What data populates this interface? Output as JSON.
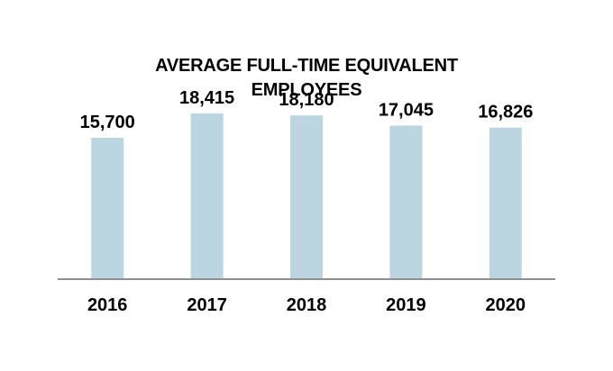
{
  "chart_data": {
    "type": "bar",
    "title_lines": [
      "AVERAGE FULL-TIME EQUIVALENT",
      "EMPLOYEES"
    ],
    "categories": [
      "2016",
      "2017",
      "2018",
      "2019",
      "2020"
    ],
    "values": [
      15700,
      18415,
      18180,
      17045,
      16826
    ],
    "value_labels": [
      "15,700",
      "18,415",
      "18,180",
      "17,045",
      "16,826"
    ],
    "xlabel": "",
    "ylabel": "",
    "ylim": [
      0,
      21000
    ],
    "grid": false,
    "legend": "none",
    "colors": {
      "bar": "#bcd6e1",
      "axis": "#8f8f8f",
      "text": "#000000"
    }
  }
}
